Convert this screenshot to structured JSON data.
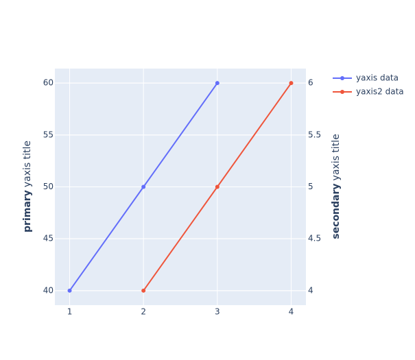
{
  "chart_data": {
    "type": "line",
    "x_ticks_label_note": null,
    "xlim": [
      0.8,
      4.2
    ],
    "xticks": [
      1,
      2,
      3,
      4
    ],
    "ylim": [
      38.6,
      61.4
    ],
    "yticks": [
      40,
      45,
      50,
      55,
      60
    ],
    "y2lim": [
      3.86,
      6.14
    ],
    "y2ticks": [
      4,
      4.5,
      5,
      5.5,
      6
    ],
    "y_label_bold": "primary",
    "y_label": "yaxis title",
    "y2_label_bold": "secondary",
    "y2_label": "yaxis title",
    "grid": true,
    "series": [
      {
        "name": "yaxis data",
        "color": "#636efa",
        "x": [
          1,
          2,
          3
        ],
        "values": [
          40,
          50,
          60
        ]
      },
      {
        "name": "yaxis2 data",
        "color": "#ef553b",
        "x": [
          2,
          3,
          4
        ],
        "values": [
          4,
          5,
          6
        ],
        "axis": "y2"
      }
    ]
  }
}
